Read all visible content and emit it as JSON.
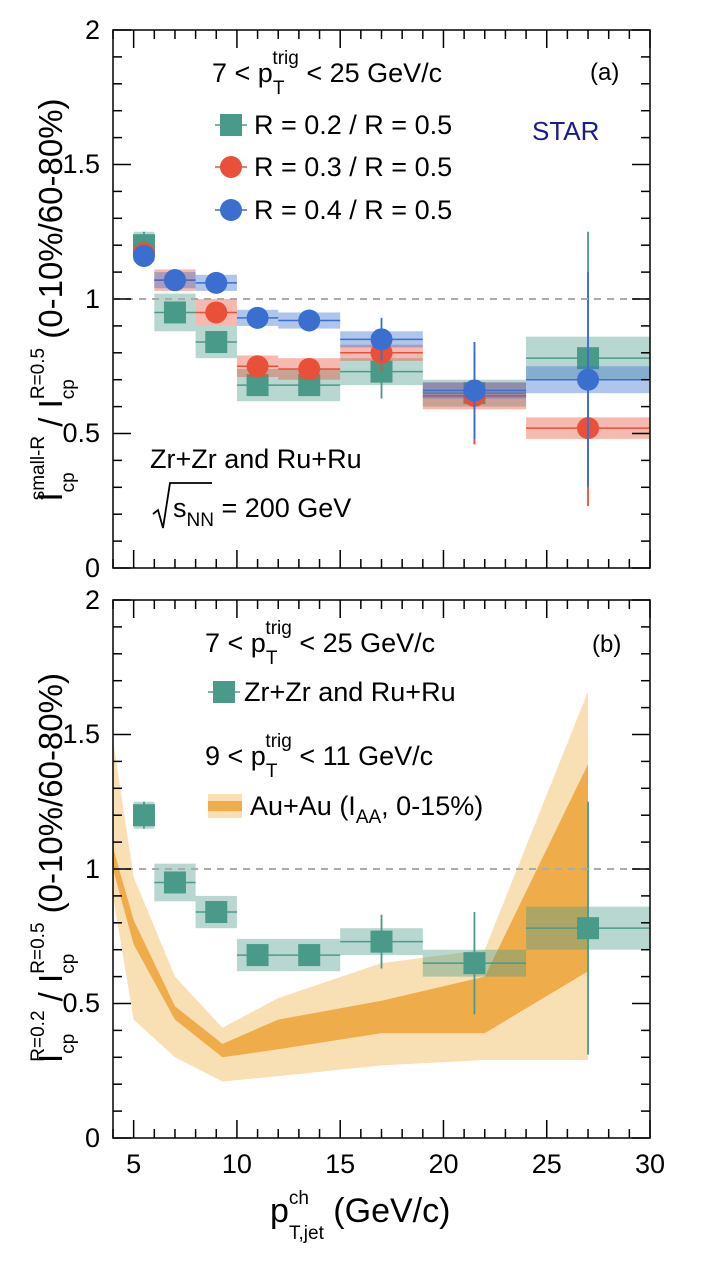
{
  "chart_data": [
    {
      "panel_label": "(a)",
      "experiment": "STAR",
      "type": "scatter",
      "ylim": [
        0,
        2
      ],
      "yticks": [
        "0",
        "0.5",
        "1",
        "1.5",
        "2"
      ],
      "xlim": [
        4,
        30
      ],
      "reference_line": 1,
      "ylabel": {
        "main": "I",
        "sub_num": "cp",
        "sup_num": "small-R",
        "mid": " / I",
        "sub_den": "cp",
        "sup_den": "R=0.5",
        "tail": " (0-10%/60-80%)"
      },
      "legend_title": {
        "pre": "7 < p",
        "sub": "T",
        "sup": "trig",
        "post": " < 25 GeV/c"
      },
      "system_text": "Zr+Zr and Ru+Ru",
      "energy_text": {
        "s": "s",
        "sub": "NN",
        "post": " = 200 GeV"
      },
      "series": [
        {
          "name": "R = 0.2 / R = 0.5",
          "marker": "square",
          "color": "#4a9a8a",
          "points": [
            {
              "x": 5.5,
              "y": 1.2,
              "stat": 0.05,
              "xlo": 5,
              "xhi": 6,
              "sys": 0.05
            },
            {
              "x": 7,
              "y": 0.95,
              "stat": 0.03,
              "xlo": 6,
              "xhi": 8,
              "sys": 0.07
            },
            {
              "x": 9,
              "y": 0.84,
              "stat": 0.04,
              "xlo": 8,
              "xhi": 10,
              "sys": 0.06
            },
            {
              "x": 11,
              "y": 0.68,
              "stat": 0.04,
              "xlo": 10,
              "xhi": 12,
              "sys": 0.06
            },
            {
              "x": 13.5,
              "y": 0.68,
              "stat": 0.04,
              "xlo": 12,
              "xhi": 15,
              "sys": 0.06
            },
            {
              "x": 17,
              "y": 0.73,
              "stat": 0.1,
              "xlo": 15,
              "xhi": 19,
              "sys": 0.05
            },
            {
              "x": 21.5,
              "y": 0.65,
              "stat": 0.19,
              "xlo": 19,
              "xhi": 24,
              "sys": 0.05
            },
            {
              "x": 27,
              "y": 0.78,
              "stat": 0.47,
              "xlo": 24,
              "xhi": 30,
              "sys": 0.08
            }
          ]
        },
        {
          "name": "R = 0.3 / R = 0.5",
          "marker": "circle",
          "color": "#e8503a",
          "points": [
            {
              "x": 5.5,
              "y": 1.17,
              "stat": 0.02,
              "xlo": 5,
              "xhi": 6,
              "sys": 0.03
            },
            {
              "x": 7,
              "y": 1.07,
              "stat": 0.02,
              "xlo": 6,
              "xhi": 8,
              "sys": 0.04
            },
            {
              "x": 9,
              "y": 0.95,
              "stat": 0.03,
              "xlo": 8,
              "xhi": 10,
              "sys": 0.05
            },
            {
              "x": 11,
              "y": 0.75,
              "stat": 0.04,
              "xlo": 10,
              "xhi": 12,
              "sys": 0.04
            },
            {
              "x": 13.5,
              "y": 0.74,
              "stat": 0.04,
              "xlo": 12,
              "xhi": 15,
              "sys": 0.04
            },
            {
              "x": 17,
              "y": 0.8,
              "stat": 0.07,
              "xlo": 15,
              "xhi": 19,
              "sys": 0.03
            },
            {
              "x": 21.5,
              "y": 0.64,
              "stat": 0.18,
              "xlo": 19,
              "xhi": 24,
              "sys": 0.05
            },
            {
              "x": 27,
              "y": 0.52,
              "stat": 0.29,
              "xlo": 24,
              "xhi": 30,
              "sys": 0.04
            }
          ]
        },
        {
          "name": "R = 0.4 / R = 0.5",
          "marker": "circle",
          "color": "#3a6fcf",
          "points": [
            {
              "x": 5.5,
              "y": 1.16,
              "stat": 0.02,
              "xlo": 5,
              "xhi": 6,
              "sys": 0.02
            },
            {
              "x": 7,
              "y": 1.07,
              "stat": 0.02,
              "xlo": 6,
              "xhi": 8,
              "sys": 0.03
            },
            {
              "x": 9,
              "y": 1.06,
              "stat": 0.03,
              "xlo": 8,
              "xhi": 10,
              "sys": 0.03
            },
            {
              "x": 11,
              "y": 0.93,
              "stat": 0.04,
              "xlo": 10,
              "xhi": 12,
              "sys": 0.03
            },
            {
              "x": 13.5,
              "y": 0.92,
              "stat": 0.04,
              "xlo": 12,
              "xhi": 15,
              "sys": 0.03
            },
            {
              "x": 17,
              "y": 0.85,
              "stat": 0.08,
              "xlo": 15,
              "xhi": 19,
              "sys": 0.03
            },
            {
              "x": 21.5,
              "y": 0.66,
              "stat": 0.18,
              "xlo": 19,
              "xhi": 24,
              "sys": 0.03
            },
            {
              "x": 27,
              "y": 0.7,
              "stat": 0.4,
              "xlo": 24,
              "xhi": 30,
              "sys": 0.05
            }
          ]
        }
      ]
    },
    {
      "panel_label": "(b)",
      "type": "scatter",
      "ylim": [
        0,
        2
      ],
      "yticks": [
        "0",
        "0.5",
        "1",
        "1.5",
        "2"
      ],
      "xlim": [
        4,
        30
      ],
      "xticks": [
        5,
        10,
        15,
        20,
        25,
        30
      ],
      "reference_line": 1,
      "ylabel": {
        "main": "I",
        "sub_num": "cp",
        "sup_num": "R=0.2",
        "mid": " / I",
        "sub_den": "cp",
        "sup_den": "R=0.5",
        "tail": " (0-10%/60-80%)"
      },
      "xlabel": {
        "main": "p",
        "sup": "ch",
        "sub": "T,jet",
        "post": " (GeV/c)"
      },
      "legend_title_1": {
        "pre": "7 < p",
        "sub": "T",
        "sup": "trig",
        "post": " < 25 GeV/c"
      },
      "legend_title_2": {
        "pre": "9 < p",
        "sub": "T",
        "sup": "trig",
        "post": " < 11 GeV/c"
      },
      "series": [
        {
          "name": "Zr+Zr and Ru+Ru",
          "marker": "square",
          "color": "#4a9a8a",
          "points": [
            {
              "x": 5.5,
              "y": 1.2,
              "stat": 0.05,
              "xlo": 5,
              "xhi": 6,
              "sys": 0.05
            },
            {
              "x": 7,
              "y": 0.95,
              "stat": 0.03,
              "xlo": 6,
              "xhi": 8,
              "sys": 0.07
            },
            {
              "x": 9,
              "y": 0.84,
              "stat": 0.04,
              "xlo": 8,
              "xhi": 10,
              "sys": 0.06
            },
            {
              "x": 11,
              "y": 0.68,
              "stat": 0.04,
              "xlo": 10,
              "xhi": 12,
              "sys": 0.06
            },
            {
              "x": 13.5,
              "y": 0.68,
              "stat": 0.04,
              "xlo": 12,
              "xhi": 15,
              "sys": 0.06
            },
            {
              "x": 17,
              "y": 0.73,
              "stat": 0.1,
              "xlo": 15,
              "xhi": 19,
              "sys": 0.05
            },
            {
              "x": 21.5,
              "y": 0.65,
              "stat": 0.19,
              "xlo": 19,
              "xhi": 24,
              "sys": 0.05
            },
            {
              "x": 27,
              "y": 0.78,
              "stat": 0.47,
              "xlo": 24,
              "xhi": 30,
              "sys": 0.08
            }
          ]
        },
        {
          "name_pre": "Au+Au (I",
          "name_sub": "AA",
          "name_post": ", 0-15%)",
          "type": "band",
          "color_inner": "#eeac4a",
          "color_outer": "#f8dfb4",
          "x": [
            4,
            5,
            7,
            9.3,
            12,
            17,
            22,
            27
          ],
          "inner_lo": [
            1.0,
            0.72,
            0.44,
            0.3,
            0.33,
            0.39,
            0.39,
            0.62
          ],
          "inner_hi": [
            1.08,
            0.81,
            0.49,
            0.35,
            0.44,
            0.51,
            0.6,
            1.39
          ],
          "outer_lo": [
            0.9,
            0.44,
            0.3,
            0.21,
            0.23,
            0.27,
            0.29,
            0.29
          ],
          "outer_hi": [
            1.48,
            0.97,
            0.6,
            0.41,
            0.52,
            0.65,
            0.7,
            1.66
          ]
        }
      ]
    }
  ]
}
